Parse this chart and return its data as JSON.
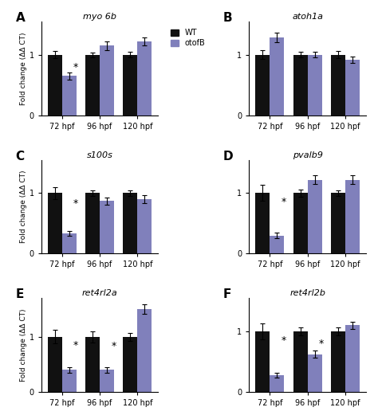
{
  "panels": [
    {
      "label": "A",
      "title": "myo 6b",
      "wt": [
        1.0,
        1.0,
        1.0
      ],
      "otofb": [
        0.65,
        1.15,
        1.22
      ],
      "wt_err": [
        0.06,
        0.04,
        0.05
      ],
      "otofb_err": [
        0.06,
        0.07,
        0.06
      ],
      "sig": [
        true,
        false,
        false
      ],
      "ylim": [
        0,
        1.55
      ],
      "yticks": [
        0,
        1
      ],
      "show_legend": true
    },
    {
      "label": "B",
      "title": "atoh1a",
      "wt": [
        1.0,
        1.0,
        1.0
      ],
      "otofb": [
        1.28,
        1.0,
        0.92
      ],
      "wt_err": [
        0.07,
        0.05,
        0.06
      ],
      "otofb_err": [
        0.08,
        0.05,
        0.05
      ],
      "sig": [
        false,
        false,
        false
      ],
      "ylim": [
        0,
        1.55
      ],
      "yticks": [
        0,
        1
      ],
      "show_legend": false
    },
    {
      "label": "C",
      "title": "s100s",
      "wt": [
        1.0,
        1.0,
        1.0
      ],
      "otofb": [
        0.33,
        0.87,
        0.9
      ],
      "wt_err": [
        0.1,
        0.05,
        0.05
      ],
      "otofb_err": [
        0.04,
        0.06,
        0.06
      ],
      "sig": [
        true,
        false,
        false
      ],
      "ylim": [
        0,
        1.55
      ],
      "yticks": [
        0,
        1
      ],
      "show_legend": false
    },
    {
      "label": "D",
      "title": "pvalb9",
      "wt": [
        1.0,
        1.0,
        1.0
      ],
      "otofb": [
        0.3,
        1.22,
        1.22
      ],
      "wt_err": [
        0.13,
        0.06,
        0.05
      ],
      "otofb_err": [
        0.04,
        0.07,
        0.07
      ],
      "sig": [
        true,
        false,
        false
      ],
      "ylim": [
        0,
        1.55
      ],
      "yticks": [
        0,
        1
      ],
      "show_legend": false
    },
    {
      "label": "E",
      "title": "ret4rl2a",
      "wt": [
        1.0,
        1.0,
        1.0
      ],
      "otofb": [
        0.4,
        0.4,
        1.5
      ],
      "wt_err": [
        0.12,
        0.1,
        0.07
      ],
      "otofb_err": [
        0.05,
        0.05,
        0.09
      ],
      "sig": [
        true,
        true,
        false
      ],
      "ylim": [
        0,
        1.7
      ],
      "yticks": [
        0,
        1
      ],
      "show_legend": false
    },
    {
      "label": "F",
      "title": "ret4rl2b",
      "wt": [
        1.0,
        1.0,
        1.0
      ],
      "otofb": [
        0.28,
        0.62,
        1.1
      ],
      "wt_err": [
        0.13,
        0.06,
        0.06
      ],
      "otofb_err": [
        0.04,
        0.06,
        0.06
      ],
      "sig": [
        true,
        true,
        false
      ],
      "ylim": [
        0,
        1.55
      ],
      "yticks": [
        0,
        1
      ],
      "show_legend": false
    }
  ],
  "timepoints": [
    "72 hpf",
    "96 hpf",
    "120 hpf"
  ],
  "wt_color": "#111111",
  "otofb_color": "#8080bb",
  "bar_width": 0.38,
  "ylabel": "Fold change (ΔΔ CT)",
  "legend_labels": [
    "WT",
    "otofB"
  ],
  "capsize": 2.5,
  "elinewidth": 0.8
}
